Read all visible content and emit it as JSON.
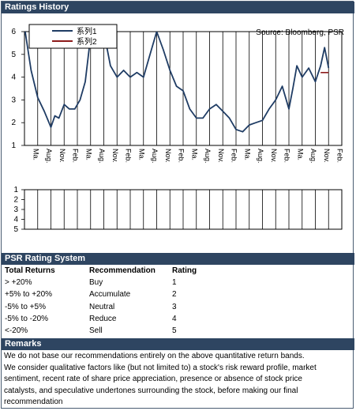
{
  "header": {
    "title": "Ratings History"
  },
  "chart_data": [
    {
      "type": "line",
      "source_note": "Source: Bloomberg, PSR",
      "legend": [
        "系列1",
        "系列2"
      ],
      "legend_position": "top-left",
      "ylim": [
        1,
        6
      ],
      "yticks": [
        "1",
        "2",
        "3",
        "4",
        "5",
        "6"
      ],
      "xticks": [
        "Ma.",
        "Aug.",
        "Nov.",
        "Feb.",
        "Ma.",
        "Aug.",
        "Nov.",
        "Feb.",
        "Ma.",
        "Aug.",
        "Nov.",
        "Feb.",
        "Ma.",
        "Aug.",
        "Nov.",
        "Feb.",
        "Ma.",
        "Aug.",
        "Nov.",
        "Feb.",
        "Ma.",
        "Aug.",
        "Nov.",
        "Feb."
      ],
      "grid": true,
      "colors": {
        "series1": "#1f3c64",
        "series2": "#8c1a1a"
      },
      "series": [
        {
          "name": "系列1",
          "x": [
            0.0,
            0.5,
            1.0,
            1.5,
            2.0,
            2.3,
            2.6,
            3.0,
            3.4,
            3.8,
            4.2,
            4.6,
            5.0,
            5.5,
            6.0,
            6.5,
            7.0,
            7.5,
            8.0,
            8.5,
            9.0,
            9.5,
            10.0,
            10.5,
            11.0,
            11.5,
            12.0,
            12.5,
            13.0,
            13.5,
            14.0,
            14.5,
            15.0,
            15.5,
            16.0,
            16.5,
            17.0,
            17.5,
            18.0,
            18.5,
            19.0,
            19.5,
            20.0,
            20.3,
            20.6,
            21.0,
            21.5,
            22.0,
            22.4,
            22.7,
            23.0
          ],
          "values": [
            6.2,
            4.3,
            3.1,
            2.5,
            1.8,
            2.3,
            2.2,
            2.8,
            2.6,
            2.6,
            3.0,
            3.8,
            5.8,
            6.3,
            6.0,
            4.5,
            4.0,
            4.3,
            4.0,
            4.2,
            4.0,
            5.0,
            6.0,
            5.2,
            4.3,
            3.6,
            3.4,
            2.6,
            2.2,
            2.2,
            2.6,
            2.8,
            2.5,
            2.2,
            1.7,
            1.6,
            1.9,
            2.0,
            2.1,
            2.6,
            3.0,
            3.6,
            2.6,
            3.5,
            4.5,
            4.0,
            4.4,
            3.8,
            4.5,
            5.3,
            4.4
          ]
        },
        {
          "name": "系列2",
          "x": [
            22.4,
            23.0
          ],
          "values": [
            4.2,
            4.2
          ]
        }
      ]
    },
    {
      "type": "line",
      "ylim": [
        1,
        5
      ],
      "yticks": [
        "1",
        "2",
        "3",
        "4",
        "5"
      ],
      "grid": true
    }
  ],
  "psr": {
    "title": "PSR Rating System",
    "headers": [
      "Total Returns",
      "Recommendation",
      "Rating"
    ],
    "rows": [
      [
        "> +20%",
        "Buy",
        "1"
      ],
      [
        "+5% to +20%",
        "Accumulate",
        "2"
      ],
      [
        "-5% to +5%",
        "Neutral",
        "3"
      ],
      [
        "-5% to -20%",
        "Reduce",
        "4"
      ],
      [
        "<-20%",
        "Sell",
        "5"
      ]
    ]
  },
  "remarks": {
    "title": "Remarks",
    "lines": [
      "We do not base our recommendations entirely on the  above quantitative return bands.",
      "We consider qualitative factors like (but not limited to) a stock's risk reward profile, market",
      "sentiment, recent rate of share price appreciation, presence or absence of stock price",
      "catalysts, and speculative undertones surrounding the stock, before making our final",
      "recommendation"
    ]
  }
}
